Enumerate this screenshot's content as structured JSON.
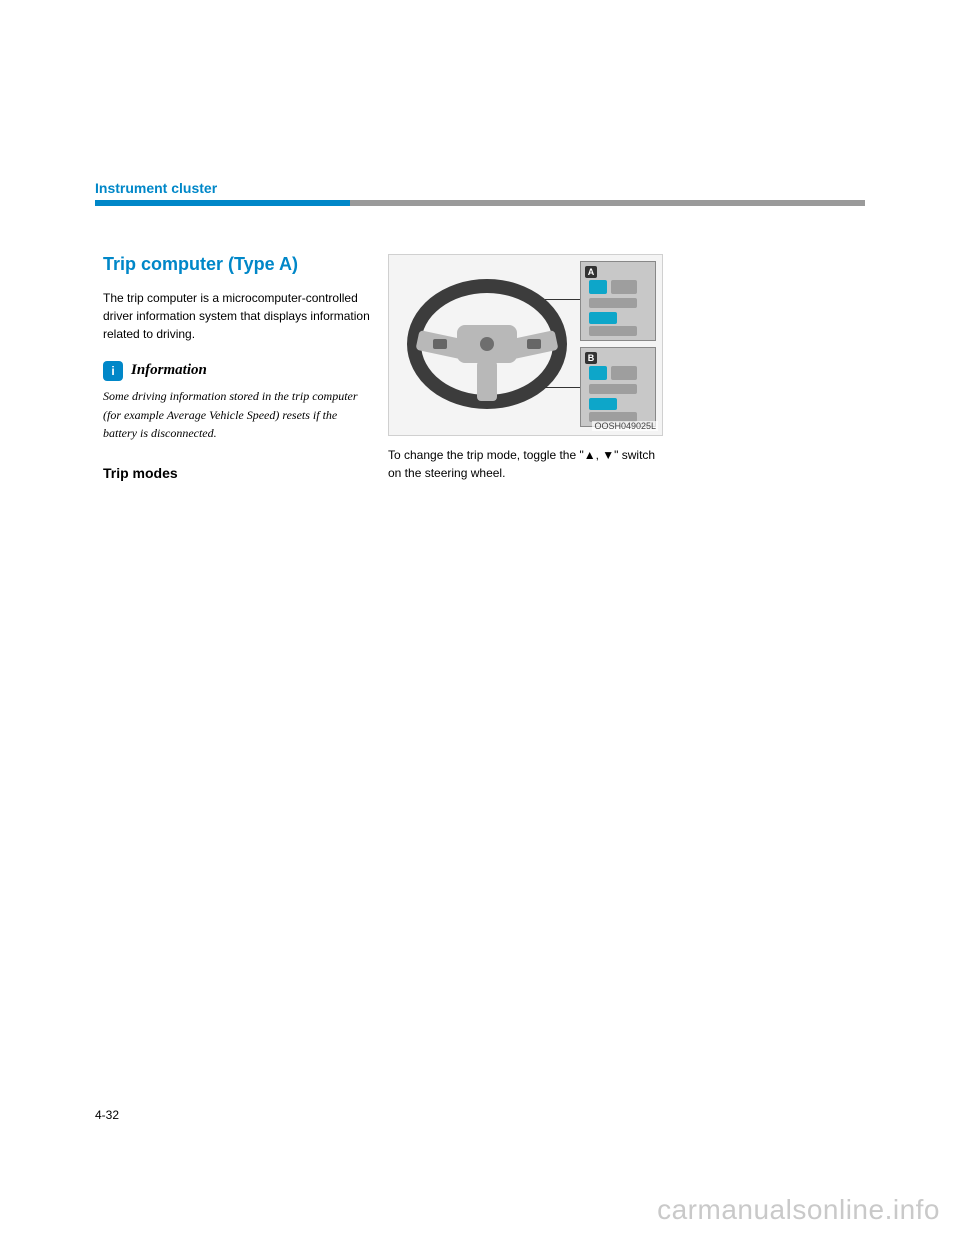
{
  "header": {
    "label": "Instrument cluster",
    "underline_blue_color": "#0087c8",
    "underline_gray_color": "#9a9a9a"
  },
  "left": {
    "title": "Trip computer (Type A)",
    "intro": "The trip computer is a microcomputer-controlled driver information system that displays information related to driving.",
    "info_label": "Information",
    "info_text": "Some driving information stored in the trip computer (for example Average Vehicle Speed) resets if the battery is disconnected.",
    "subhead": "Trip modes"
  },
  "figure": {
    "inset_a_tag": "A",
    "inset_b_tag": "B",
    "code": "OOSH049025L"
  },
  "middle": {
    "line1": "To change the trip mode, toggle the \"▲, ▼\" switch on the steering wheel."
  },
  "page_number": "4-32",
  "watermark": "carmanualsonline.info",
  "colors": {
    "accent": "#0087c8",
    "text": "#000000",
    "bg": "#ffffff",
    "watermark": "#c9c9c9"
  }
}
